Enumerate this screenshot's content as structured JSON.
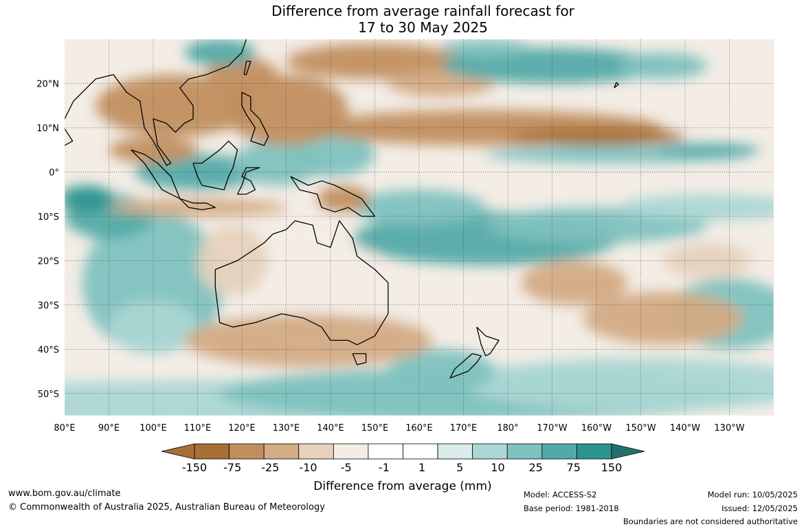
{
  "title": {
    "line1": "Difference from average rainfall forecast for",
    "line2": "17 to 30 May 2025"
  },
  "map": {
    "extent": {
      "lon": [
        80,
        240
      ],
      "lat": [
        -55,
        30
      ]
    },
    "lat_labels": [
      "20°N",
      "10°N",
      "0°",
      "10°S",
      "20°S",
      "30°S",
      "40°S",
      "50°S"
    ],
    "lon_labels": [
      "80°E",
      "90°E",
      "100°E",
      "110°E",
      "120°E",
      "130°E",
      "140°E",
      "150°E",
      "160°E",
      "170°E",
      "180°",
      "170°W",
      "160°W",
      "150°W",
      "140°W",
      "130°W"
    ]
  },
  "colorbar": {
    "title": "Difference from average (mm)",
    "ticks": [
      "-150",
      "-75",
      "-25",
      "-10",
      "-5",
      "-1",
      "1",
      "5",
      "10",
      "25",
      "75",
      "150"
    ],
    "colors": [
      "#a86f37",
      "#c18f5f",
      "#d3ab84",
      "#e6d2bd",
      "#f3ede6",
      "#ffffff",
      "#d9ecea",
      "#abd7d4",
      "#80c2bf",
      "#52aaa8",
      "#2c9590",
      "#25706c"
    ],
    "legend_colors": [
      "#a86f37",
      "#c18f5f",
      "#d3ab84",
      "#e6d2bd",
      "#f3ede6",
      "#ffffff",
      "#ffffff",
      "#d9ecea",
      "#abd7d4",
      "#80c2bf",
      "#52aaa8",
      "#2c9590"
    ]
  },
  "footer": {
    "website": "www.bom.gov.au/climate",
    "copyright": "© Commonwealth of Australia 2025, Australian Bureau of Meteorology",
    "model": "Model: ACCESS-S2",
    "base_period": "Base period: 1981-2018",
    "model_run": "Model run: 10/05/2025",
    "issued": "Issued: 12/05/2025",
    "disclaimer": "Boundaries are not considered authoritative"
  }
}
